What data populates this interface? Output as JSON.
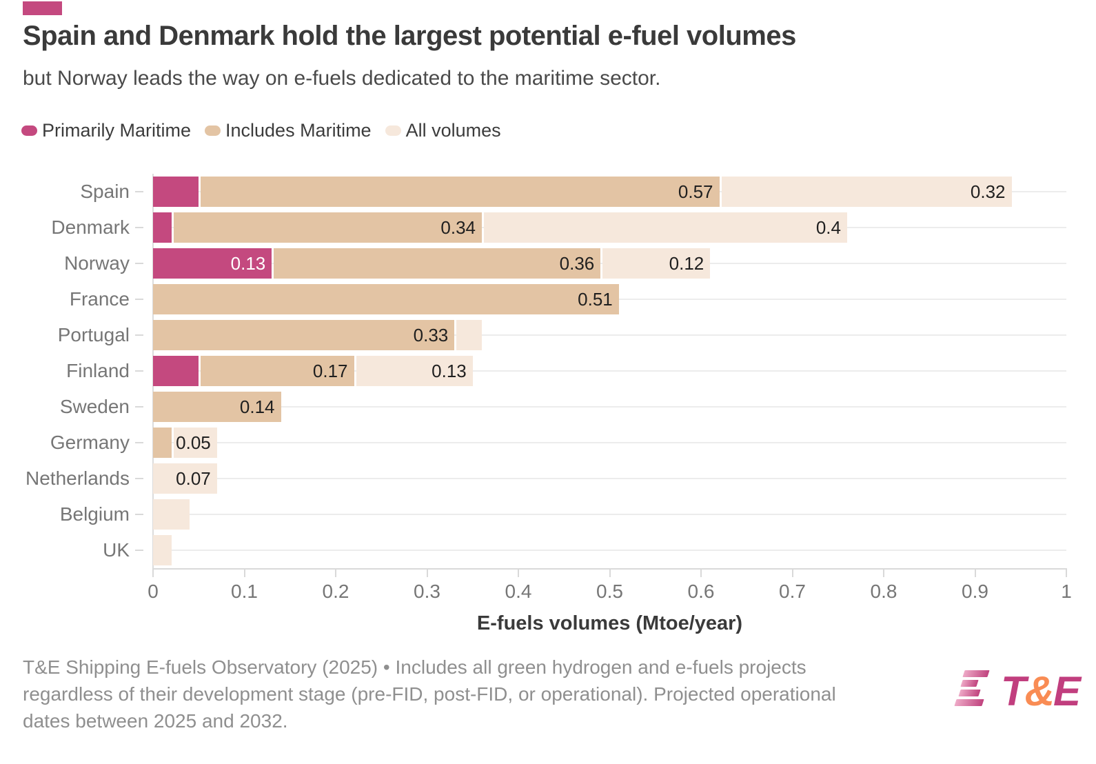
{
  "accent_color": "#c4497f",
  "header": {
    "title": "Spain and Denmark hold the largest potential e-fuel volumes",
    "subtitle": "but Norway leads the way on e-fuels dedicated to the maritime sector."
  },
  "legend": [
    {
      "label": "Primarily Maritime",
      "color": "#c4497f"
    },
    {
      "label": "Includes Maritime",
      "color": "#e3c4a4"
    },
    {
      "label": "All volumes",
      "color": "#f6e8dc"
    }
  ],
  "chart_data": {
    "type": "bar",
    "orientation": "horizontal",
    "stacked": true,
    "title": "Spain and Denmark hold the largest potential e-fuel volumes",
    "subtitle": "but Norway leads the way on e-fuels dedicated to the maritime sector.",
    "categories": [
      "Spain",
      "Denmark",
      "Norway",
      "France",
      "Portugal",
      "Finland",
      "Sweden",
      "Germany",
      "Netherlands",
      "Belgium",
      "UK"
    ],
    "series": [
      {
        "name": "Primarily Maritime",
        "color": "#c4497f",
        "label_color": "#ffffff",
        "values": [
          0.05,
          0.02,
          0.13,
          0,
          0,
          0.05,
          0,
          0,
          0,
          0,
          0
        ],
        "labels": [
          "",
          "",
          "0.13",
          "",
          "",
          "",
          "",
          "",
          "",
          "",
          ""
        ]
      },
      {
        "name": "Includes Maritime",
        "color": "#e3c4a4",
        "label_color": "#1f1f1f",
        "values": [
          0.57,
          0.34,
          0.36,
          0.51,
          0.33,
          0.17,
          0.14,
          0.02,
          0,
          0,
          0
        ],
        "labels": [
          "0.57",
          "0.34",
          "0.36",
          "0.51",
          "0.33",
          "0.17",
          "0.14",
          "",
          "",
          "",
          ""
        ]
      },
      {
        "name": "All volumes",
        "color": "#f6e8dc",
        "label_color": "#1f1f1f",
        "values": [
          0.32,
          0.4,
          0.12,
          0,
          0.03,
          0.13,
          0,
          0.05,
          0.07,
          0.04,
          0.02
        ],
        "labels": [
          "0.32",
          "0.4",
          "0.12",
          "",
          "",
          "0.13",
          "",
          "0.05",
          "0.07",
          "",
          ""
        ]
      }
    ],
    "xlabel": "E-fuels volumes (Mtoe/year)",
    "xlim": [
      0,
      1
    ],
    "xticks": [
      0,
      0.1,
      0.2,
      0.3,
      0.4,
      0.5,
      0.6,
      0.7,
      0.8,
      0.9,
      1
    ],
    "xtick_labels": [
      "0",
      "0.1",
      "0.2",
      "0.3",
      "0.4",
      "0.5",
      "0.6",
      "0.7",
      "0.8",
      "0.9",
      "1"
    ],
    "grid": "horizontal category gridlines",
    "legend_position": "top-left"
  },
  "footer": {
    "source_lines": [
      "T&E Shipping E-fuels Observatory (2025) • Includes all green hydrogen and e-fuels projects",
      "regardless of their development stage (pre-FID, post-FID, or operational). Projected operational",
      "dates between 2025 and 2032."
    ],
    "logo_text": {
      "t": "T",
      "amp": "&",
      "e": "E"
    },
    "logo_colors": {
      "letters": "#c13e7e",
      "amp": "#f98c54",
      "stripe_from": "#eeaac7",
      "stripe_to": "#c0437e"
    }
  }
}
